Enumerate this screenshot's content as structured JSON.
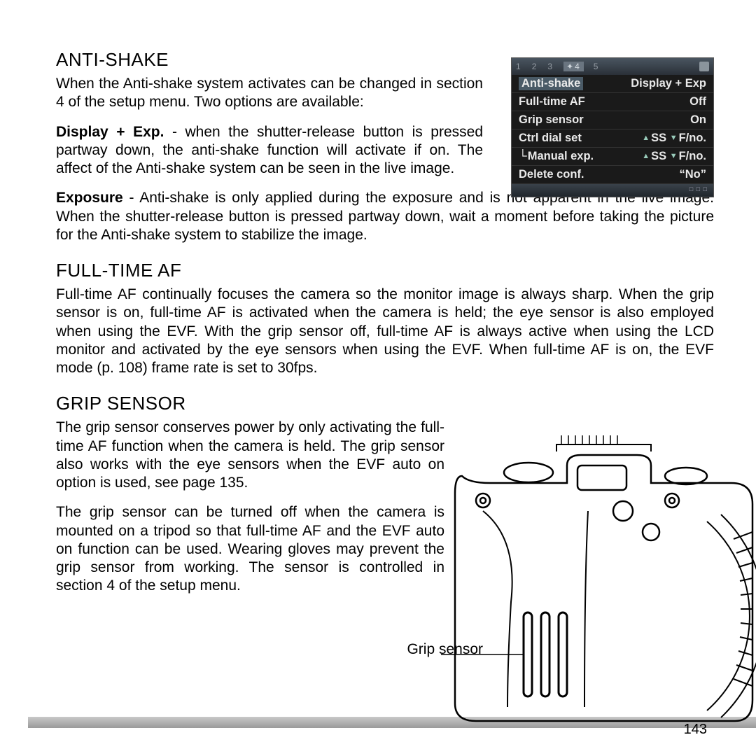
{
  "page_number": "143",
  "sections": {
    "anti_shake": {
      "heading": "ANTI-SHAKE",
      "p1": "When the Anti-shake system activates can be changed in section 4 of the setup menu. Two options are available:",
      "p2_lead": "Display + Exp.",
      "p2_rest": " - when the shutter-release button is pressed partway down, the anti-shake function will activate if on. The affect of the Anti-shake system can be seen in the live image.",
      "p3_lead": "Exposure",
      "p3_rest": " - Anti-shake is only applied during the exposure and is not apparent in the live image. When the shutter-release button is pressed partway down, wait a moment before taking the picture for the Anti-shake system to stabilize the image."
    },
    "full_time_af": {
      "heading": "FULL-TIME AF",
      "p1": "Full-time AF continually focuses the camera so the monitor image is always sharp. When the grip sensor is on, full-time AF is activated when the camera is held; the eye sensor is also employed when using the EVF. With the grip sensor off, full-time AF is always active when using the LCD monitor and activated by the eye sensors when using the EVF. When full-time AF is on, the EVF mode (p. 108) frame rate is set to 30fps."
    },
    "grip_sensor": {
      "heading": "GRIP SENSOR",
      "p1": "The grip sensor conserves power by only activating the full-time AF function when the camera is held. The grip sensor also works with the eye sensors when the EVF auto on option is used, see page 135.",
      "p2": "The grip sensor can be turned off when the camera is mounted on a tripod so that full-time AF and the EVF auto on function can be used. Wearing gloves may prevent the grip sensor from working. The sensor is controlled in section 4 of the setup menu.",
      "callout": "Grip sensor"
    }
  },
  "menu": {
    "tabs": [
      "1",
      "2",
      "3",
      "4",
      "5"
    ],
    "rows": [
      {
        "label": "Anti-shake",
        "value": "Display + Exp",
        "hl": true,
        "sub": false,
        "dial": false
      },
      {
        "label": "Full-time AF",
        "value": "Off",
        "hl": false,
        "sub": false,
        "dial": false
      },
      {
        "label": "Grip sensor",
        "value": "On",
        "hl": false,
        "sub": false,
        "dial": false
      },
      {
        "label": "Ctrl dial set",
        "value": "SS   F/no.",
        "hl": false,
        "sub": false,
        "dial": true
      },
      {
        "label": "Manual exp.",
        "value": "SS   F/no.",
        "hl": false,
        "sub": true,
        "dial": true
      },
      {
        "label": "Delete conf.",
        "value": "“No”",
        "hl": false,
        "sub": false,
        "dial": false
      }
    ],
    "footer_icons": "□ □ □"
  },
  "colors": {
    "menu_bg": "#1a1a1a",
    "menu_tab_bg": "#4a5560",
    "menu_text": "#eaeaea",
    "page_bg": "#ffffff",
    "text": "#000000",
    "bottom_bar": "#b0b0b0"
  }
}
